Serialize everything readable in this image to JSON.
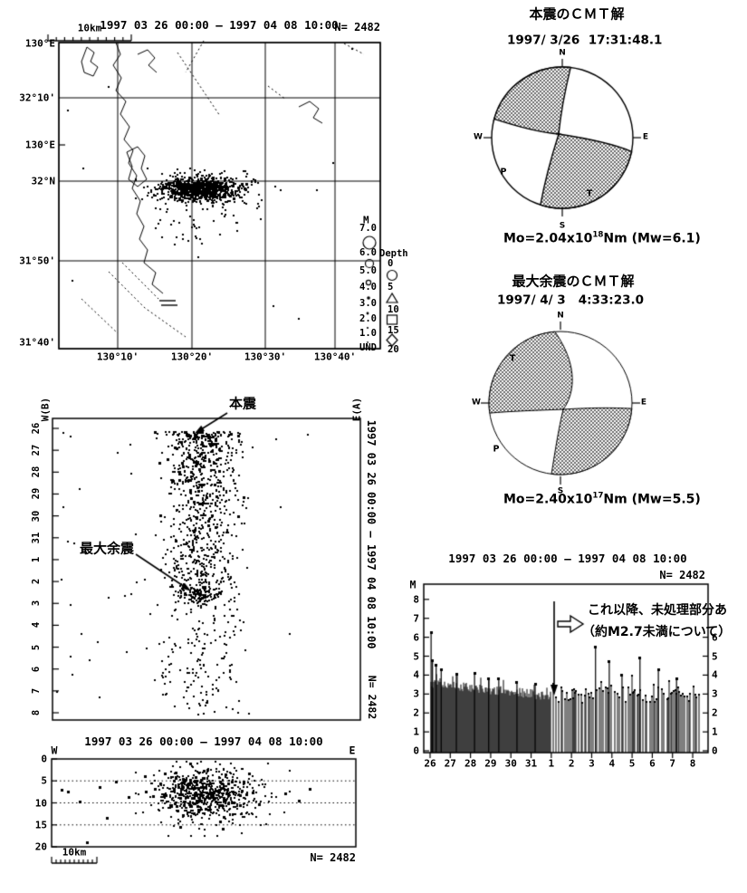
{
  "map_panel": {
    "title": "1997 03 26 00:00 — 1997 04 08 10:00",
    "count_label": "N= 2482",
    "scale_bar_label": "10km",
    "left_axis_labels": [
      "130°E",
      "32°10'",
      "130°E",
      "32°N",
      "31°50'",
      "31°40'"
    ],
    "bottom_axis_labels": [
      "130°10'",
      "130°20'",
      "130°30'",
      "130°40'"
    ],
    "legend": {
      "magnitude_header": "M",
      "magnitude_items": [
        "7.0",
        "6.0",
        "5.0",
        "4.0",
        "3.0",
        "2.0",
        "1.0",
        "UND"
      ],
      "depth_header": "Depth",
      "depth_items": [
        "0",
        "5",
        "10",
        "15",
        "20"
      ]
    }
  },
  "space_time_panel": {
    "west_corner_label": "W(B)",
    "east_corner_label": "E(A)",
    "right_title": "1997 03 26 00:00 — 1997 04 08 10:00",
    "right_count_label": "N= 2482",
    "date_tick_labels": [
      "26",
      "27",
      "28",
      "29",
      "30",
      "31",
      "1",
      "2",
      "3",
      "4",
      "5",
      "6",
      "7",
      "8"
    ],
    "mainshock_annotation": "本震",
    "largest_aftershock_annotation": "最大余震"
  },
  "depth_section_panel": {
    "title": "1997 03 26 00:00 — 1997 04 08 10:00",
    "west_label": "W",
    "east_label": "E",
    "depth_tick_labels": [
      "0",
      "5",
      "10",
      "15",
      "20"
    ],
    "scale_bar_label": "10km",
    "count_label": "N= 2482"
  },
  "cmt_mainshock_panel": {
    "title": "本震のＣＭＴ解",
    "datetime": "1997/ 3/26  17:31:48.1",
    "compass": {
      "n": "N",
      "e": "E",
      "s": "S",
      "w": "W"
    },
    "p_axis_label": "P",
    "t_axis_label": "T",
    "moment_prefix": "Mo=2.04x10",
    "moment_exponent": "18",
    "moment_suffix": "Nm (Mw=6.1)"
  },
  "cmt_aftershock_panel": {
    "title": "最大余震のＣＭＴ解",
    "datetime": "1997/ 4/ 3   4:33:23.0",
    "compass": {
      "n": "N",
      "e": "E",
      "s": "S",
      "w": "W"
    },
    "p_axis_label": "P",
    "t_axis_label": "T",
    "moment_prefix": "Mo=2.40x10",
    "moment_exponent": "17",
    "moment_suffix": "Nm (Mw=5.5)"
  },
  "magnitude_time_panel": {
    "title": "1997 03 26 00:00 — 1997 04 08 10:00",
    "count_label": "N= 2482",
    "y_axis_label": "M",
    "left_tick_labels": [
      "8",
      "7",
      "6",
      "5",
      "4",
      "3",
      "2",
      "1",
      "0"
    ],
    "right_tick_labels": [
      "6",
      "5",
      "4",
      "3",
      "2",
      "1",
      "0"
    ],
    "x_tick_labels": [
      "26",
      "27",
      "28",
      "29",
      "30",
      "31",
      "1",
      "2",
      "3",
      "4",
      "5",
      "6",
      "7",
      "8"
    ],
    "annotation_line1": "これ以降、未処理部分あ",
    "annotation_line2": "（約M2.7未満について）"
  },
  "chart_data": [
    {
      "id": "epicenter-map",
      "type": "scatter",
      "title": "1997 03 26 00:00 — 1997 04 08 10:00",
      "n_events": 2482,
      "lon_ticks": [
        "130°10'",
        "130°20'",
        "130°30'",
        "130°40'"
      ],
      "lat_ticks": [
        "32°10'",
        "32°N",
        "31°50'",
        "31°40'"
      ],
      "cluster": {
        "center_lon": "130°21'",
        "center_lat": "31°58'",
        "trend": "E-W elongated",
        "length_km": 15,
        "width_km": 5
      },
      "magnitude_symbol_classes": [
        7.0,
        6.0,
        5.0,
        4.0,
        3.0,
        2.0,
        1.0
      ],
      "depth_symbol_bounds_km": [
        0,
        5,
        10,
        15,
        20
      ],
      "scale_bar_km": 10
    },
    {
      "id": "space-time",
      "type": "scatter",
      "x_axis": "E-W position, W(B) to E(A)",
      "y_axis": "date, 1997-03-26 to 1997-04-08",
      "n_events": 2482,
      "pattern": "dense activity 3/26-3/31 decaying with time; secondary dense burst on 4/3",
      "annotations": [
        {
          "label": "本震",
          "date": "1997-03-26"
        },
        {
          "label": "最大余震",
          "date": "1997-04-03"
        }
      ]
    },
    {
      "id": "depth-section",
      "type": "scatter",
      "x_axis": "W to E",
      "y_axis": "depth (km)",
      "ylim": [
        0,
        20
      ],
      "grid_depths_km": [
        5,
        10,
        15
      ],
      "main_cluster_depth_km": [
        3,
        13
      ],
      "densest_depth_km": [
        5,
        11
      ],
      "n_events": 2482,
      "scale_bar_km": 10
    },
    {
      "id": "cmt-mainshock",
      "type": "focal-mechanism",
      "event": "mainshock",
      "origin_time": "1997/3/26 17:31:48.1",
      "Mo": "2.04x10^18 Nm",
      "Mw": 6.1,
      "style": "strike-slip",
      "shaded_quadrants": [
        "NW",
        "SE"
      ]
    },
    {
      "id": "cmt-largest-aftershock",
      "type": "focal-mechanism",
      "event": "largest aftershock",
      "origin_time": "1997/4/3 4:33:23.0",
      "Mo": "2.40x10^17 Nm",
      "Mw": 5.5,
      "style": "strike-slip",
      "shaded_quadrants": [
        "NW",
        "SE"
      ]
    },
    {
      "id": "magnitude-time",
      "type": "stem",
      "ylabel": "M",
      "ylim": [
        0,
        8
      ],
      "x_categories": [
        "3/26",
        "3/27",
        "3/28",
        "3/29",
        "3/30",
        "3/31",
        "4/1",
        "4/2",
        "4/3",
        "4/4",
        "4/5",
        "4/6",
        "4/7",
        "4/8"
      ],
      "daily_max_magnitude": [
        6.2,
        4.1,
        4.1,
        3.8,
        3.6,
        3.5,
        3.3,
        3.5,
        5.5,
        4.0,
        4.9,
        4.3,
        3.8,
        3.2
      ],
      "early_spikes": [
        [
          26.05,
          6.25
        ],
        [
          26.12,
          4.75
        ],
        [
          26.3,
          4.5
        ],
        [
          26.55,
          4.3
        ],
        [
          27.3,
          4.05
        ],
        [
          28.2,
          4.1
        ],
        [
          28.9,
          3.8
        ],
        [
          29.4,
          3.8
        ],
        [
          30.3,
          3.6
        ],
        [
          31.2,
          3.5
        ]
      ],
      "late_tall_stems": [
        [
          3.19,
          5.5
        ],
        [
          3.87,
          4.7
        ],
        [
          4.5,
          4.0
        ],
        [
          5.39,
          4.9
        ],
        [
          6.3,
          4.3
        ],
        [
          7.2,
          3.8
        ]
      ],
      "completeness_note": "これ以降、未処理部分あ（約M2.7未満について） — after 4/1 events below ~M2.7 unprocessed",
      "n_events": 2482
    }
  ]
}
